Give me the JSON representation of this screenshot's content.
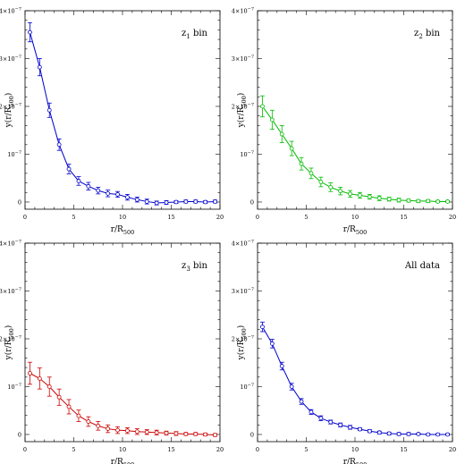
{
  "chart_data": [
    {
      "type": "line",
      "title": "",
      "panel_label": {
        "main": "z",
        "sub": "1",
        "suffix": " bin"
      },
      "xlabel": {
        "main": "r/R",
        "sub": "500"
      },
      "ylabel": {
        "pre": "y(r/R",
        "sub": "500",
        "post": ")"
      },
      "xlim": [
        0,
        20
      ],
      "ylim": [
        -1.5e-08,
        4e-07
      ],
      "xticks": [
        0,
        5,
        10,
        15,
        20
      ],
      "yticks": [
        0,
        1e-07,
        2e-07,
        3e-07,
        4e-07
      ],
      "ytick_labels": [
        {
          "base": "0",
          "exp": ""
        },
        {
          "base": "10",
          "exp": "−7"
        },
        {
          "base": "2×10",
          "exp": "−7"
        },
        {
          "base": "3×10",
          "exp": "−7"
        },
        {
          "base": "4×10",
          "exp": "−7"
        }
      ],
      "color": "#0000cc",
      "grid": false,
      "series": [
        {
          "x": [
            0.5,
            1.5,
            2.5,
            3.5,
            4.5,
            5.5,
            6.5,
            7.5,
            8.5,
            9.5,
            10.5,
            11.5,
            12.5,
            13.5,
            14.5,
            15.5,
            16.5,
            17.5,
            18.5,
            19.5
          ],
          "y": [
            3.55e-07,
            2.82e-07,
            1.92e-07,
            1.2e-07,
            6.9e-08,
            4.4e-08,
            3.3e-08,
            2.4e-08,
            1.8e-08,
            1.6e-08,
            1e-08,
            5e-09,
            1e-09,
            -2e-09,
            -1e-09,
            0,
            1e-09,
            1e-09,
            0,
            1e-09
          ],
          "err": [
            2e-08,
            1.8e-08,
            1.5e-08,
            1.2e-08,
            1e-08,
            9e-09,
            8e-09,
            7e-09,
            7e-09,
            6e-09,
            6e-09,
            5e-09,
            5e-09,
            4e-09,
            4e-09,
            3e-09,
            3e-09,
            3e-09,
            3e-09,
            3e-09
          ]
        }
      ]
    },
    {
      "type": "line",
      "title": "",
      "panel_label": {
        "main": "z",
        "sub": "2",
        "suffix": " bin"
      },
      "xlabel": {
        "main": "r/R",
        "sub": "500"
      },
      "ylabel": {
        "pre": "y(r/R",
        "sub": "500",
        "post": ")"
      },
      "xlim": [
        0,
        20
      ],
      "ylim": [
        -1.5e-08,
        4e-07
      ],
      "xticks": [
        0,
        5,
        10,
        15,
        20
      ],
      "yticks": [
        0,
        1e-07,
        2e-07,
        3e-07,
        4e-07
      ],
      "ytick_labels": [
        {
          "base": "0",
          "exp": ""
        },
        {
          "base": "10",
          "exp": "−7"
        },
        {
          "base": "2×10",
          "exp": "−7"
        },
        {
          "base": "3×10",
          "exp": "−7"
        },
        {
          "base": "4×10",
          "exp": "−7"
        }
      ],
      "color": "#00bb00",
      "grid": false,
      "series": [
        {
          "x": [
            0.5,
            1.5,
            2.5,
            3.5,
            4.5,
            5.5,
            6.5,
            7.5,
            8.5,
            9.5,
            10.5,
            11.5,
            12.5,
            13.5,
            14.5,
            15.5,
            16.5,
            17.5,
            18.5,
            19.5
          ],
          "y": [
            2e-07,
            1.72e-07,
            1.42e-07,
            1.12e-07,
            8e-08,
            6e-08,
            4.2e-08,
            3.1e-08,
            2.3e-08,
            1.7e-08,
            1.4e-08,
            1.1e-08,
            8e-09,
            6e-09,
            4e-09,
            3e-09,
            2e-09,
            2e-09,
            1e-09,
            1e-09
          ],
          "err": [
            2.2e-08,
            2e-08,
            1.8e-08,
            1.5e-08,
            1.3e-08,
            1.1e-08,
            1e-08,
            9e-09,
            8e-09,
            7e-09,
            6e-09,
            5e-09,
            5e-09,
            4e-09,
            4e-09,
            3e-09,
            3e-09,
            3e-09,
            2e-09,
            2e-09
          ]
        }
      ]
    },
    {
      "type": "line",
      "title": "",
      "panel_label": {
        "main": "z",
        "sub": "3",
        "suffix": " bin"
      },
      "xlabel": {
        "main": "r/R",
        "sub": "500"
      },
      "ylabel": {
        "pre": "y(r/R",
        "sub": "500",
        "post": ")"
      },
      "xlim": [
        0,
        20
      ],
      "ylim": [
        -1.5e-08,
        4e-07
      ],
      "xticks": [
        0,
        5,
        10,
        15,
        20
      ],
      "yticks": [
        0,
        1e-07,
        2e-07,
        3e-07,
        4e-07
      ],
      "ytick_labels": [
        {
          "base": "0",
          "exp": ""
        },
        {
          "base": "10",
          "exp": "−7"
        },
        {
          "base": "2×10",
          "exp": "−7"
        },
        {
          "base": "3×10",
          "exp": "−7"
        },
        {
          "base": "4×10",
          "exp": "−7"
        }
      ],
      "color": "#cc0000",
      "grid": false,
      "series": [
        {
          "x": [
            0.5,
            1.5,
            2.5,
            3.5,
            4.5,
            5.5,
            6.5,
            7.5,
            8.5,
            9.5,
            10.5,
            11.5,
            12.5,
            13.5,
            14.5,
            15.5,
            16.5,
            17.5,
            18.5,
            19.5
          ],
          "y": [
            1.28e-07,
            1.17e-07,
            1e-07,
            7.8e-08,
            5.8e-08,
            3.9e-08,
            2.7e-08,
            1.8e-08,
            1.2e-08,
            9e-09,
            8e-09,
            6e-09,
            5e-09,
            4e-09,
            3e-09,
            2e-09,
            1e-09,
            1e-09,
            0,
            -1e-09
          ],
          "err": [
            2.3e-08,
            2.2e-08,
            2e-08,
            1.7e-08,
            1.5e-08,
            1.2e-08,
            1e-08,
            9e-09,
            8e-09,
            7e-09,
            6e-09,
            6e-09,
            5e-09,
            5e-09,
            4e-09,
            4e-09,
            3e-09,
            3e-09,
            3e-09,
            3e-09
          ]
        }
      ]
    },
    {
      "type": "line",
      "title": "",
      "panel_label": {
        "main": "All data",
        "sub": "",
        "suffix": ""
      },
      "xlabel": {
        "main": "r/R",
        "sub": "500"
      },
      "ylabel": {
        "pre": "y(r/R",
        "sub": "500",
        "post": ")"
      },
      "xlim": [
        0,
        20
      ],
      "ylim": [
        -1.5e-08,
        4e-07
      ],
      "xticks": [
        0,
        5,
        10,
        15,
        20
      ],
      "yticks": [
        0,
        1e-07,
        2e-07,
        3e-07,
        4e-07
      ],
      "ytick_labels": [
        {
          "base": "0",
          "exp": ""
        },
        {
          "base": "10",
          "exp": "−7"
        },
        {
          "base": "2×10",
          "exp": "−7"
        },
        {
          "base": "3×10",
          "exp": "−7"
        },
        {
          "base": "4×10",
          "exp": "−7"
        }
      ],
      "color": "#0000cc",
      "grid": false,
      "series": [
        {
          "x": [
            0.5,
            1.5,
            2.5,
            3.5,
            4.5,
            5.5,
            6.5,
            7.5,
            8.5,
            9.5,
            10.5,
            11.5,
            12.5,
            13.5,
            14.5,
            15.5,
            16.5,
            17.5,
            18.5,
            19.5
          ],
          "y": [
            2.25e-07,
            1.9e-07,
            1.43e-07,
            1e-07,
            6.9e-08,
            4.7e-08,
            3.4e-08,
            2.6e-08,
            2e-08,
            1.5e-08,
            1.1e-08,
            7e-09,
            4e-09,
            2e-09,
            1e-09,
            1e-09,
            1e-09,
            0,
            0,
            0
          ],
          "err": [
            1e-08,
            9e-09,
            8e-09,
            7e-09,
            6e-09,
            5e-09,
            5e-09,
            4e-09,
            4e-09,
            4e-09,
            3e-09,
            3e-09,
            3e-09,
            3e-09,
            3e-09,
            3e-09,
            2e-09,
            2e-09,
            2e-09,
            2e-09
          ]
        }
      ]
    }
  ]
}
